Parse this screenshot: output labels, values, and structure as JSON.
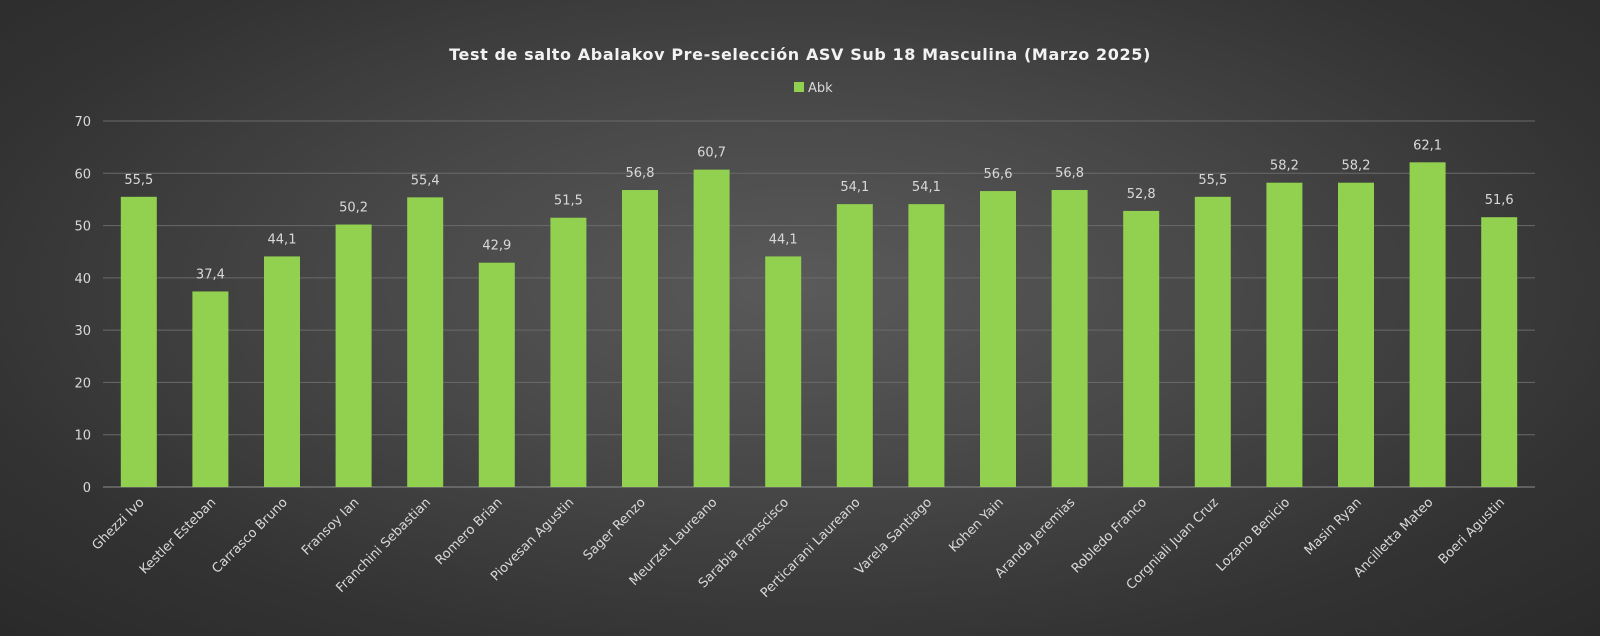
{
  "chart_data": {
    "type": "bar",
    "title": "Test de salto Abalakov Pre-selección ASV Sub 18 Masculina (Marzo 2025)",
    "legend_position": "top",
    "grid": true,
    "ylim": [
      0,
      70
    ],
    "yticks": [
      0,
      10,
      20,
      30,
      40,
      50,
      60,
      70
    ],
    "bar_color": "#92d050",
    "series": [
      {
        "name": "Abk",
        "values": [
          55.5,
          37.4,
          44.1,
          50.2,
          55.4,
          42.9,
          51.5,
          56.8,
          60.7,
          44.1,
          54.1,
          54.1,
          56.6,
          56.8,
          52.8,
          55.5,
          58.2,
          58.2,
          62.1,
          51.6
        ],
        "labels": [
          "55,5",
          "37,4",
          "44,1",
          "50,2",
          "55,4",
          "42,9",
          "51,5",
          "56,8",
          "60,7",
          "44,1",
          "54,1",
          "54,1",
          "56,6",
          "56,8",
          "52,8",
          "55,5",
          "58,2",
          "58,2",
          "62,1",
          "51,6"
        ]
      }
    ],
    "categories": [
      "Ghezzi Ivo",
      "Kestler Esteban",
      "Carrasco Bruno",
      "Fransoy Ian",
      "Franchini Sebastian",
      "Romero Brian",
      "Piovesan Agustin",
      "Sager Renzo",
      "Meurzet Laureano",
      "Sarabia Franscisco",
      "Perticarani Laureano",
      "Varela Santiago",
      "Kohen Yain",
      "Aranda Jeremias",
      "Robledo Franco",
      "Corgniali Juan Cruz",
      "Lozano Benicio",
      "Masin Ryan",
      "Ancilletta Mateo",
      "Boeri Agustin"
    ]
  }
}
